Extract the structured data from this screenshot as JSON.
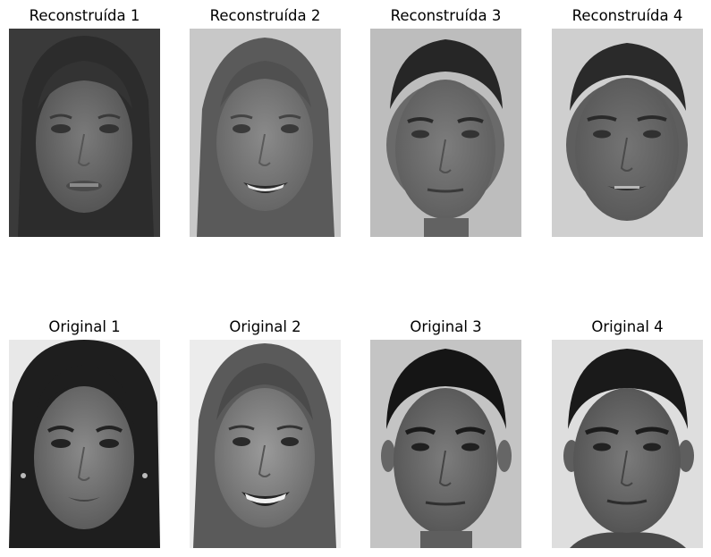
{
  "panels": [
    {
      "title": "Reconstruída 1",
      "kind": "reconstructed"
    },
    {
      "title": "Reconstruída 2",
      "kind": "reconstructed"
    },
    {
      "title": "Reconstruída 3",
      "kind": "reconstructed"
    },
    {
      "title": "Reconstruída 4",
      "kind": "reconstructed"
    },
    {
      "title": "Original 1",
      "kind": "original"
    },
    {
      "title": "Original 2",
      "kind": "original"
    },
    {
      "title": "Original 3",
      "kind": "original"
    },
    {
      "title": "Original 4",
      "kind": "original"
    }
  ],
  "colors": {
    "background": "#ffffff",
    "text": "#000000"
  }
}
